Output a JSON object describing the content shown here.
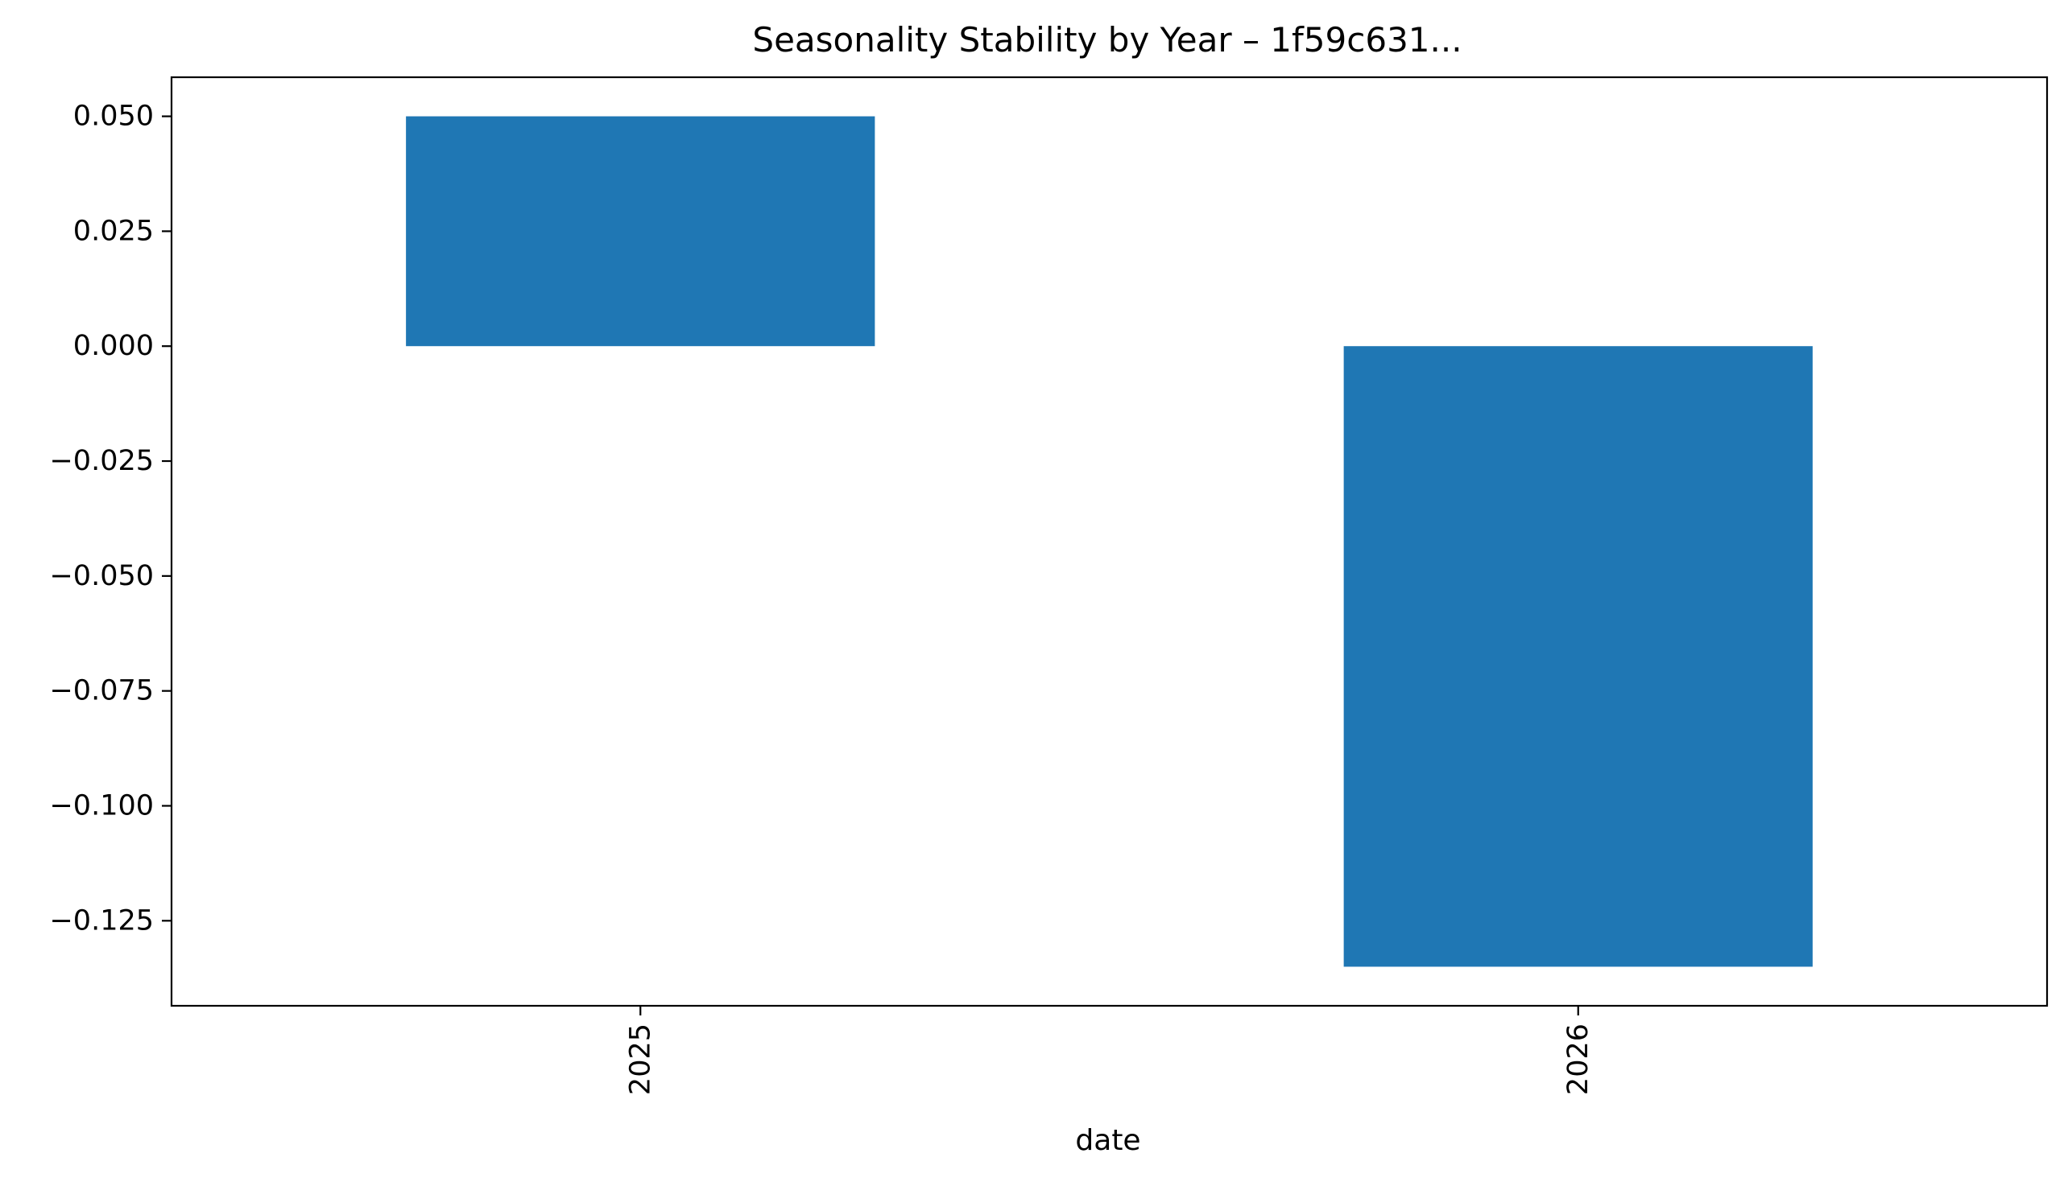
{
  "chart_data": {
    "type": "bar",
    "title": "Seasonality Stability by Year – 1f59c631...",
    "xlabel": "date",
    "ylabel": "",
    "categories": [
      "2025",
      "2026"
    ],
    "values": [
      0.05,
      -0.135
    ],
    "ylim": [
      -0.1435,
      0.0585
    ],
    "yticks": [
      0.05,
      0.025,
      0.0,
      -0.025,
      -0.05,
      -0.075,
      -0.1,
      -0.125
    ],
    "ytick_labels": [
      "0.050",
      "0.025",
      "0.000",
      "−0.025",
      "−0.050",
      "−0.075",
      "−0.100",
      "−0.125"
    ],
    "xtick_rotation": "vertical",
    "grid": false,
    "legend": "none",
    "bar_color": "#1f77b4"
  }
}
